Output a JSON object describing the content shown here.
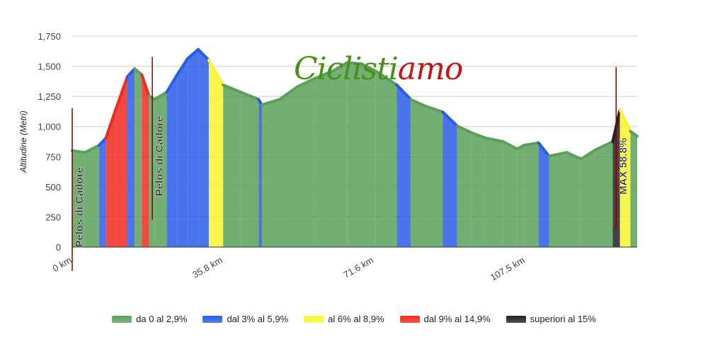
{
  "chart_data": {
    "type": "area",
    "title": "",
    "xlabel": "",
    "ylabel": "Altitudine (Metri)",
    "xlim": [
      0,
      134
    ],
    "ylim": [
      0,
      1750
    ],
    "grid": true,
    "y_ticks": [
      "0",
      "250",
      "500",
      "750",
      "1,000",
      "1,250",
      "1,500",
      "1,750"
    ],
    "y_tick_values": [
      0,
      250,
      500,
      750,
      1000,
      1250,
      1500,
      1750
    ],
    "x_ticks": [
      "0 km",
      "35.8 km",
      "71.6 km",
      "107.5 km"
    ],
    "x_tick_values": [
      0,
      35.8,
      71.6,
      107.5
    ],
    "profile_km": [
      0,
      3,
      6.4,
      8,
      10.3,
      13.1,
      14.8,
      16.5,
      18.2,
      19.5,
      22.4,
      24.9,
      27.4,
      29.9,
      32.4,
      35.8,
      40,
      44.2,
      45,
      49.2,
      53.4,
      57.6,
      61.8,
      65.2,
      68.6,
      72,
      77,
      80.3,
      83.7,
      87.9,
      91.3,
      94.6,
      98,
      102.2,
      105.5,
      107.2,
      110.6,
      113.1,
      117.3,
      120.7,
      124,
      128.2,
      129.9,
      132.4,
      134
    ],
    "profile_m": [
      800,
      785,
      845,
      905,
      1140,
      1415,
      1480,
      1430,
      1255,
      1225,
      1285,
      1430,
      1565,
      1640,
      1550,
      1345,
      1285,
      1225,
      1180,
      1225,
      1330,
      1400,
      1460,
      1530,
      1520,
      1460,
      1345,
      1225,
      1170,
      1120,
      1005,
      950,
      905,
      875,
      815,
      845,
      865,
      755,
      785,
      730,
      805,
      875,
      1140,
      960,
      920
    ],
    "annotations": [
      {
        "km": 0,
        "text": "Pelos di Cadore"
      },
      {
        "km": 19,
        "text": "Pelos di Cadore"
      },
      {
        "km": 129,
        "text": "MAX 58.8%"
      }
    ],
    "legend_position": "bottom",
    "legend": [
      {
        "label": "da 0 al 2,9%",
        "min": 0,
        "color": "#5aa05a"
      },
      {
        "label": "dal 3% al 5,9%",
        "min": 3,
        "color": "#2a5ce8"
      },
      {
        "label": "al 6% al 8,9%",
        "min": 6,
        "color": "#f5f530"
      },
      {
        "label": "dal 9% al 14,9%",
        "min": 9,
        "color": "#f02a20"
      },
      {
        "label": "superiori al 15%",
        "min": 15,
        "color": "#222222"
      }
    ]
  },
  "logo": {
    "text_a": "Ciclisti",
    "text_b": "amo"
  }
}
